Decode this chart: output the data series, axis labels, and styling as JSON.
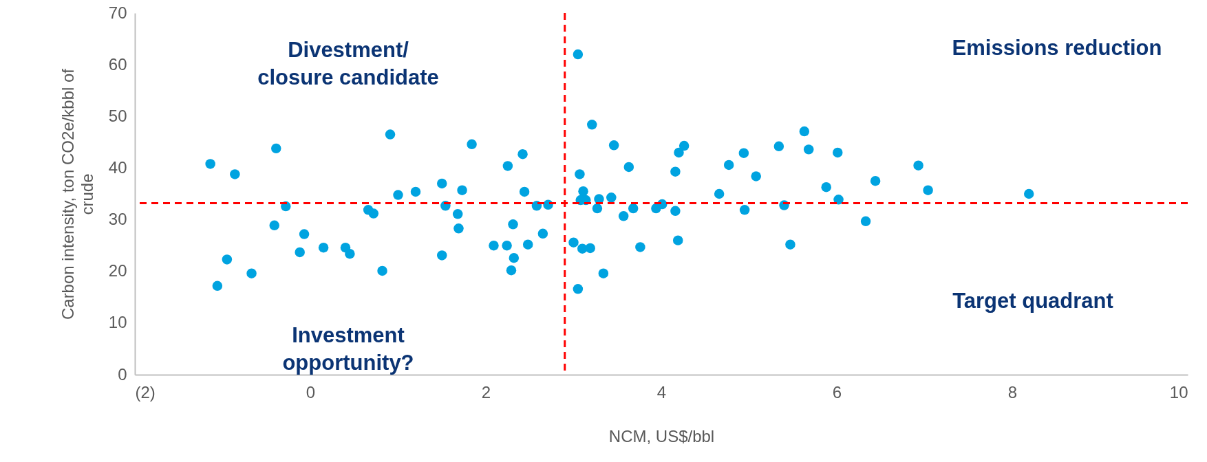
{
  "chart_data": {
    "type": "scatter",
    "xlabel": "NCM, US$/bbl",
    "ylabel": "Carbon intensity, ton CO2e/kbbl of crude",
    "x": [
      -1.14,
      -0.86,
      -0.39,
      -0.28,
      -0.41,
      -0.07,
      -0.12,
      0.15,
      0.4,
      0.45,
      -0.95,
      -1.06,
      -0.67,
      0.82,
      0.66,
      0.72,
      0.91,
      1.0,
      1.2,
      1.5,
      1.54,
      1.73,
      1.68,
      1.69,
      1.5,
      1.84,
      2.25,
      2.42,
      2.44,
      2.58,
      2.71,
      2.31,
      2.09,
      2.24,
      2.48,
      2.65,
      2.32,
      2.29,
      3.21,
      3.07,
      3.11,
      3.08,
      3.14,
      3.29,
      3.27,
      3.43,
      3.46,
      3.63,
      3.57,
      3.68,
      3.94,
      4.01,
      4.16,
      4.2,
      4.26,
      4.16,
      4.19,
      3.76,
      3.34,
      3.05,
      3.0,
      3.1,
      3.19,
      4.66,
      4.77,
      4.94,
      5.08,
      4.95,
      5.34,
      5.4,
      5.47,
      5.63,
      5.68,
      6.01,
      5.88,
      6.02,
      6.33,
      6.44,
      6.93,
      7.04,
      8.19,
      3.05
    ],
    "series": [
      {
        "color": "#00a3e0",
        "values": [
          40.8,
          38.8,
          43.8,
          32.6,
          28.9,
          27.2,
          23.7,
          24.6,
          24.6,
          23.4,
          22.3,
          17.2,
          19.6,
          20.1,
          31.9,
          31.2,
          46.5,
          34.8,
          35.4,
          37.0,
          32.7,
          35.7,
          31.1,
          28.3,
          23.1,
          44.6,
          40.4,
          42.7,
          35.4,
          32.7,
          32.9,
          29.1,
          25.0,
          25.0,
          25.2,
          27.3,
          22.6,
          20.2,
          48.4,
          38.8,
          35.5,
          33.8,
          33.8,
          34.0,
          32.2,
          34.3,
          44.4,
          40.2,
          30.7,
          32.2,
          32.2,
          33.0,
          39.3,
          43.0,
          44.3,
          31.7,
          26.0,
          24.7,
          19.6,
          16.6,
          25.6,
          24.4,
          24.5,
          35.0,
          40.6,
          42.9,
          38.4,
          31.9,
          44.2,
          32.8,
          25.2,
          47.1,
          43.6,
          43.0,
          36.3,
          33.9,
          29.7,
          37.5,
          40.5,
          35.7,
          35.0,
          62.0
        ]
      }
    ],
    "xlim": [
      -2,
      10
    ],
    "xticks": [
      {
        "value": -2,
        "label": "(2)"
      },
      0,
      2,
      4,
      6,
      8,
      10
    ],
    "ylim": [
      0,
      70
    ],
    "yticks": [
      0,
      10,
      20,
      30,
      40,
      50,
      60,
      70
    ],
    "marker": "circle",
    "grid": false,
    "legend": false,
    "ref_lines": [
      {
        "axis": "x",
        "value": 2.9,
        "color": "#ff0000",
        "line_style": "dashed"
      },
      {
        "axis": "y",
        "value": 33.2,
        "color": "#ff0000",
        "line_style": "dashed"
      }
    ],
    "annotations": [
      "Divestment/\nclosure candidate",
      "Emissions reduction",
      "Investment\nopportunity?",
      "Target quadrant"
    ]
  }
}
